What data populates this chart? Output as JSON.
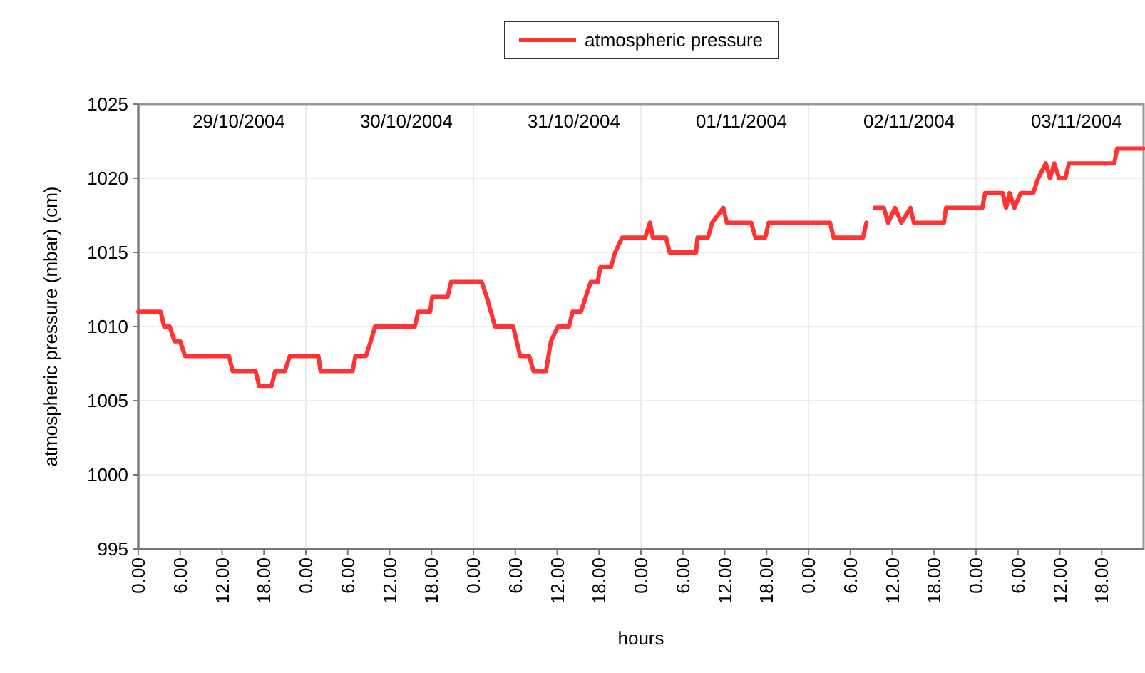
{
  "chart_data": {
    "type": "line",
    "xlabel": "hours",
    "ylabel": "atmospheric pressure (mbar) (cm)",
    "legend": "top",
    "grid": true,
    "marker": "none",
    "line_style": "solid",
    "xlim": [
      "2004-10-29T00:00",
      "2004-11-04T00:00"
    ],
    "ylim": [
      995,
      1025
    ],
    "yticks": [
      995,
      1000,
      1005,
      1010,
      1015,
      1020,
      1025
    ],
    "xticks": [
      {
        "value": "2004-10-29T00:00",
        "label": "0.00"
      },
      {
        "value": "2004-10-29T06:00",
        "label": "6.00"
      },
      {
        "value": "2004-10-29T12:00",
        "label": "12.00"
      },
      {
        "value": "2004-10-29T18:00",
        "label": "18.00"
      },
      {
        "value": "2004-10-30T00:00",
        "label": "0.00"
      },
      {
        "value": "2004-10-30T06:00",
        "label": "6.00"
      },
      {
        "value": "2004-10-30T12:00",
        "label": "12.00"
      },
      {
        "value": "2004-10-30T18:00",
        "label": "18.00"
      },
      {
        "value": "2004-10-31T00:00",
        "label": "0.00"
      },
      {
        "value": "2004-10-31T06:00",
        "label": "6.00"
      },
      {
        "value": "2004-10-31T12:00",
        "label": "12.00"
      },
      {
        "value": "2004-10-31T18:00",
        "label": "18.00"
      },
      {
        "value": "2004-11-01T00:00",
        "label": "0.00"
      },
      {
        "value": "2004-11-01T06:00",
        "label": "6.00"
      },
      {
        "value": "2004-11-01T12:00",
        "label": "12.00"
      },
      {
        "value": "2004-11-01T18:00",
        "label": "18.00"
      },
      {
        "value": "2004-11-02T00:00",
        "label": "0.00"
      },
      {
        "value": "2004-11-02T06:00",
        "label": "6.00"
      },
      {
        "value": "2004-11-02T12:00",
        "label": "12.00"
      },
      {
        "value": "2004-11-02T18:00",
        "label": "18.00"
      },
      {
        "value": "2004-11-03T00:00",
        "label": "0.00"
      },
      {
        "value": "2004-11-03T06:00",
        "label": "6.00"
      },
      {
        "value": "2004-11-03T12:00",
        "label": "12.00"
      },
      {
        "value": "2004-11-03T18:00",
        "label": "18.00"
      }
    ],
    "annotations": [
      "29/10/2004",
      "30/10/2004",
      "31/10/2004",
      "01/11/2004",
      "02/11/2004",
      "03/11/2004"
    ],
    "series": [
      {
        "name": "atmospheric pressure",
        "color": "#ff3333",
        "x": [
          "2004-10-29T00:00",
          "2004-10-29T03:12",
          "2004-10-29T03:42",
          "2004-10-29T04:30",
          "2004-10-29T05:12",
          "2004-10-29T06:00",
          "2004-10-29T06:42",
          "2004-10-29T13:00",
          "2004-10-29T13:30",
          "2004-10-29T16:48",
          "2004-10-29T17:18",
          "2004-10-29T19:06",
          "2004-10-29T19:36",
          "2004-10-29T21:00",
          "2004-10-29T21:42",
          "2004-10-30T01:48",
          "2004-10-30T02:06",
          "2004-10-30T06:42",
          "2004-10-30T07:06",
          "2004-10-30T08:36",
          "2004-10-30T09:18",
          "2004-10-30T09:54",
          "2004-10-30T15:36",
          "2004-10-30T16:06",
          "2004-10-30T17:48",
          "2004-10-30T18:06",
          "2004-10-30T20:18",
          "2004-10-30T20:48",
          "2004-10-31T01:12",
          "2004-10-31T01:54",
          "2004-10-31T03:06",
          "2004-10-31T05:42",
          "2004-10-31T06:42",
          "2004-10-31T08:00",
          "2004-10-31T08:36",
          "2004-10-31T10:24",
          "2004-10-31T11:06",
          "2004-10-31T12:06",
          "2004-10-31T13:42",
          "2004-10-31T14:12",
          "2004-10-31T15:24",
          "2004-10-31T16:06",
          "2004-10-31T16:48",
          "2004-10-31T17:48",
          "2004-10-31T18:12",
          "2004-10-31T19:42",
          "2004-10-31T20:18",
          "2004-10-31T21:18",
          "2004-11-01T00:36",
          "2004-11-01T01:18",
          "2004-11-01T01:42",
          "2004-11-01T03:36",
          "2004-11-01T04:06",
          "2004-11-01T07:54",
          "2004-11-01T08:06",
          "2004-11-01T09:36",
          "2004-11-01T10:12",
          "2004-11-01T11:48",
          "2004-11-01T12:18",
          "2004-11-01T15:48",
          "2004-11-01T16:24",
          "2004-11-01T17:48",
          "2004-11-01T18:18",
          "2004-11-02T03:06",
          "2004-11-02T03:36",
          "2004-11-02T07:48",
          "2004-11-02T08:18",
          "2004-11-02T09:00",
          "2004-11-02T09:30",
          "2004-11-02T10:48",
          "2004-11-02T11:24",
          "2004-11-02T12:24",
          "2004-11-02T13:18",
          "2004-11-02T14:36",
          "2004-11-02T15:06",
          "2004-11-02T19:24",
          "2004-11-02T19:42",
          "2004-11-03T00:54",
          "2004-11-03T01:18",
          "2004-11-03T03:48",
          "2004-11-03T04:18",
          "2004-11-03T04:48",
          "2004-11-03T05:30",
          "2004-11-03T06:24",
          "2004-11-03T08:12",
          "2004-11-03T08:54",
          "2004-11-03T10:00",
          "2004-11-03T10:36",
          "2004-11-03T11:12",
          "2004-11-03T11:54",
          "2004-11-03T12:48",
          "2004-11-03T13:18",
          "2004-11-03T19:48",
          "2004-11-03T20:12",
          "2004-11-04T00:00"
        ],
        "values": [
          1011,
          1011,
          1010,
          1010,
          1009,
          1009,
          1008,
          1008,
          1007,
          1007,
          1006,
          1006,
          1007,
          1007,
          1008,
          1008,
          1007,
          1007,
          1008,
          1008,
          1009,
          1010,
          1010,
          1011,
          1011,
          1012,
          1012,
          1013,
          1013,
          1012,
          1010,
          1010,
          1008,
          1008,
          1007,
          1007,
          1009,
          1010,
          1010,
          1011,
          1011,
          1012,
          1013,
          1013,
          1014,
          1014,
          1015,
          1016,
          1016,
          1017,
          1016,
          1016,
          1015,
          1015,
          1016,
          1016,
          1017,
          1018,
          1017,
          1017,
          1016,
          1016,
          1017,
          1017,
          1016,
          1016,
          1017,
          null,
          1018,
          1018,
          1017,
          1018,
          1017,
          1018,
          1017,
          1017,
          1018,
          1018,
          1019,
          1019,
          1018,
          1019,
          1018,
          1019,
          1019,
          1020,
          1021,
          1020,
          1021,
          1020,
          1020,
          1021,
          1021,
          1022,
          1022
        ]
      }
    ]
  }
}
